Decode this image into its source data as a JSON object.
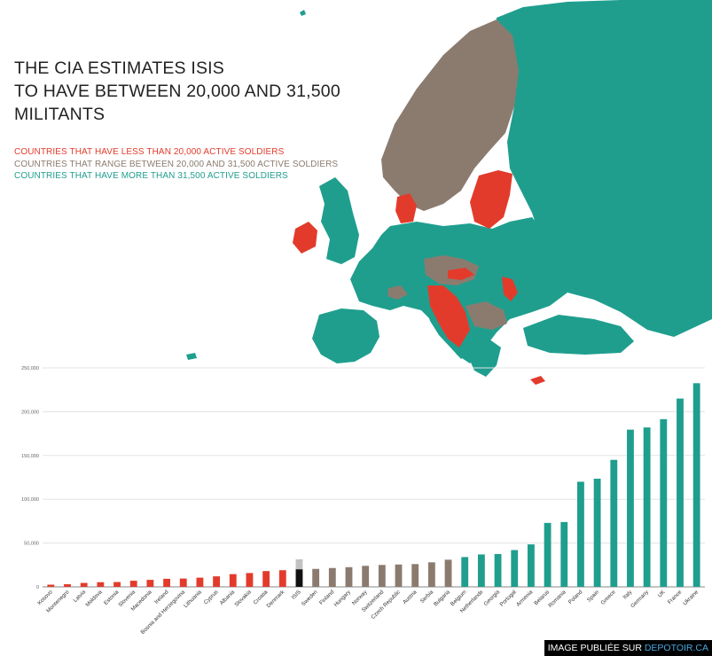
{
  "title_lines": [
    "THE CIA ESTIMATES ISIS",
    "TO HAVE BETWEEN 20,000 AND 31,500",
    "MILITANTS"
  ],
  "legend": {
    "low": "COUNTRIES THAT HAVE LESS THAN 20,000 ACTIVE SOLDIERS",
    "mid": "COUNTRIES THAT RANGE BETWEEN  20,000  AND 31,500 ACTIVE SOLDIERS",
    "high": "COUNTRIES THAT HAVE  MORE THAN 31,500 ACTIVE SOLDIERS"
  },
  "colors": {
    "low": "#e33b2b",
    "mid": "#8b7b6f",
    "high": "#1f9e8e",
    "isis": "#111111",
    "isis_range": "#c2c2c2",
    "grid": "#e3e3e3",
    "axis": "#888888",
    "sea": "#ffffff"
  },
  "credit": {
    "prefix": "IMAGE PUBLIÉE SUR ",
    "site": "DEPOTOIR.CA"
  },
  "map": {
    "alt": "Map of Europe colored by active soldier counts"
  },
  "chart_data": {
    "type": "bar",
    "ylim": [
      0,
      250000
    ],
    "yticks": [
      0,
      50000,
      100000,
      150000,
      200000,
      250000
    ],
    "ytick_labels": [
      "0",
      "50,000",
      "100,000",
      "150,000",
      "200,000",
      "250,000"
    ],
    "grid": true,
    "categories": [
      "Kosovo",
      "Montenegro",
      "Latvia",
      "Moldova",
      "Estonia",
      "Slovenia",
      "Macedonia",
      "Ireland",
      "Bosnia and Herzegovina",
      "Lithuania",
      "Cyprus",
      "Albania",
      "Slovakia",
      "Croatia",
      "Denmark",
      "ISIS",
      "Sweden",
      "Finland",
      "Hungary",
      "Norway",
      "Switzerland",
      "Czech Republic",
      "Austria",
      "Serbia",
      "Bulgaria",
      "Belgium",
      "Netherlands",
      "Georgia",
      "Portugal",
      "Armenia",
      "Belarus",
      "Romania",
      "Poland",
      "Spain",
      "Greece",
      "Italy",
      "Germany",
      "UK",
      "France",
      "Ukraine"
    ],
    "values": [
      2500,
      3000,
      4500,
      5300,
      5500,
      7000,
      8000,
      9200,
      9500,
      10500,
      12000,
      14500,
      15800,
      18000,
      19000,
      20000,
      20500,
      21500,
      22500,
      24000,
      25000,
      25500,
      26000,
      28000,
      31000,
      34000,
      37000,
      37500,
      42000,
      48500,
      73000,
      74000,
      120000,
      123500,
      145000,
      179500,
      182000,
      191500,
      215000,
      232500
    ],
    "groups": [
      "low",
      "low",
      "low",
      "low",
      "low",
      "low",
      "low",
      "low",
      "low",
      "low",
      "low",
      "low",
      "low",
      "low",
      "low",
      "isis",
      "mid",
      "mid",
      "mid",
      "mid",
      "mid",
      "mid",
      "mid",
      "mid",
      "mid",
      "high",
      "high",
      "high",
      "high",
      "high",
      "high",
      "high",
      "high",
      "high",
      "high",
      "high",
      "high",
      "high",
      "high",
      "high"
    ],
    "isis_range": [
      20000,
      31500
    ]
  }
}
